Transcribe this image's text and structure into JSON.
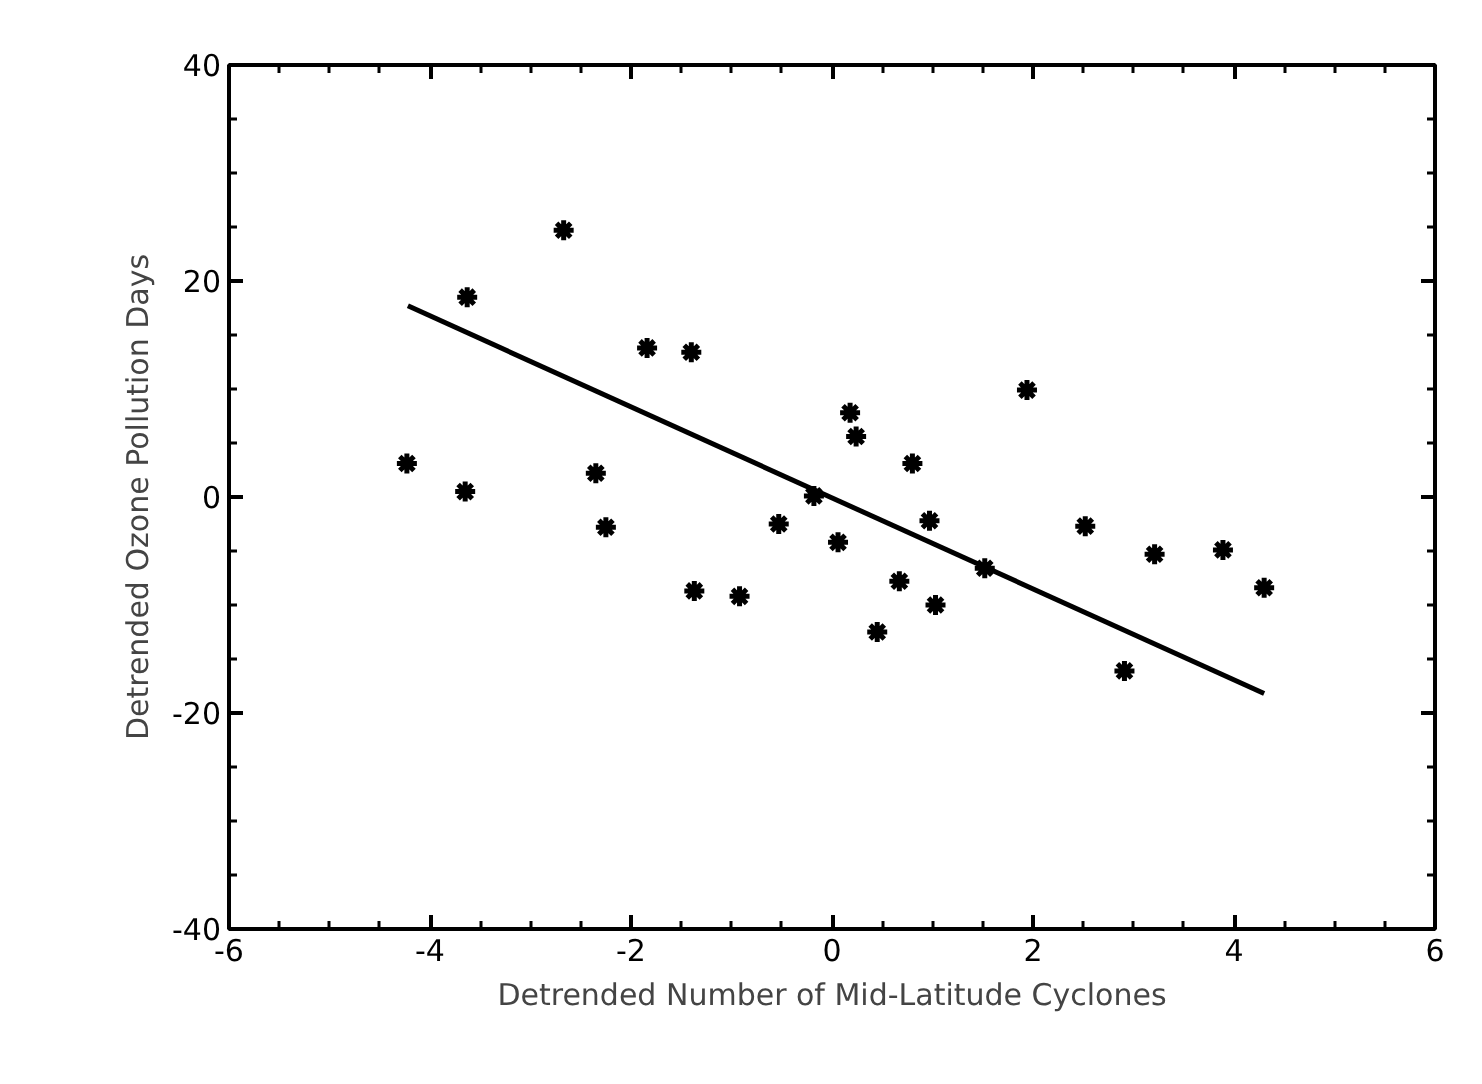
{
  "chart_data": {
    "type": "scatter",
    "xlabel": "Detrended Number of Mid-Latitude Cyclones",
    "ylabel": "Detrended Ozone Pollution Days",
    "xlim": [
      -6,
      6
    ],
    "ylim": [
      -40,
      40
    ],
    "xticks": [
      -6,
      {
        "value": -5.5,
        "label": null
      },
      {
        "value": -5,
        "label": null
      },
      {
        "value": -4.5,
        "label": null
      },
      -4,
      {
        "value": -3.5,
        "label": null
      },
      {
        "value": -3,
        "label": null
      },
      {
        "value": -2.5,
        "label": null
      },
      -2,
      {
        "value": -1.5,
        "label": null
      },
      {
        "value": -1,
        "label": null
      },
      {
        "value": -0.5,
        "label": null
      },
      0,
      {
        "value": 0.5,
        "label": null
      },
      {
        "value": 1,
        "label": null
      },
      {
        "value": 1.5,
        "label": null
      },
      2,
      {
        "value": 2.5,
        "label": null
      },
      {
        "value": 3,
        "label": null
      },
      {
        "value": 3.5,
        "label": null
      },
      4,
      {
        "value": 4.5,
        "label": null
      },
      {
        "value": 5,
        "label": null
      },
      {
        "value": 5.5,
        "label": null
      },
      6
    ],
    "yticks": [
      -40,
      {
        "value": -35,
        "label": null
      },
      {
        "value": -30,
        "label": null
      },
      {
        "value": -25,
        "label": null
      },
      -20,
      {
        "value": -15,
        "label": null
      },
      {
        "value": -10,
        "label": null
      },
      {
        "value": -5,
        "label": null
      },
      0,
      {
        "value": 5,
        "label": null
      },
      {
        "value": 10,
        "label": null
      },
      {
        "value": 15,
        "label": null
      },
      20,
      {
        "value": 25,
        "label": null
      },
      {
        "value": 30,
        "label": null
      },
      {
        "value": 35,
        "label": null
      },
      40
    ],
    "grid": false,
    "marker": "cross",
    "series": [
      {
        "color": "#000000",
        "x": [
          -4.23,
          -3.63,
          -3.65,
          -2.67,
          -2.35,
          -2.25,
          -1.84,
          -1.4,
          -1.37,
          -0.92,
          -0.53,
          -0.18,
          0.06,
          0.18,
          0.24,
          0.45,
          0.67,
          0.8,
          0.97,
          1.03,
          1.52,
          1.94,
          2.52,
          2.91,
          3.21,
          3.89,
          4.3
        ],
        "values": [
          3.1,
          18.5,
          0.5,
          24.7,
          2.2,
          -2.8,
          13.8,
          13.4,
          -8.7,
          -9.2,
          -2.5,
          0.1,
          -4.2,
          7.8,
          5.6,
          -12.5,
          -7.8,
          3.1,
          -2.2,
          -10.0,
          -6.6,
          9.9,
          -2.7,
          -16.1,
          -5.3,
          -4.9,
          -8.4
        ]
      },
      {
        "type": "line",
        "color": "#000000",
        "marker": "none",
        "line_style": "solid",
        "x": [
          -4.22,
          4.3
        ],
        "values": [
          17.7,
          -18.2
        ]
      }
    ]
  }
}
